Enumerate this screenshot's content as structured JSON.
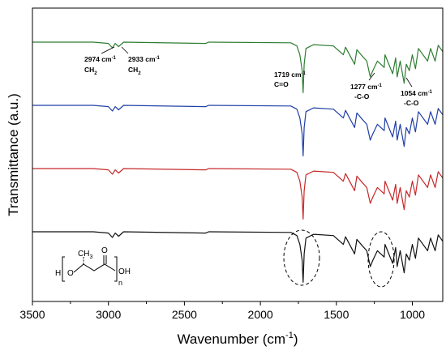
{
  "chart_data": {
    "type": "line",
    "title": "",
    "xlabel": "Wavenumber (cm",
    "xlabel_sup": "-1",
    "xlabel_suffix": ")",
    "ylabel": "Transmittance (a.u.)",
    "xlim": [
      3500,
      800
    ],
    "x_ticks": [
      "3500",
      "3000",
      "2500",
      "2000",
      "1500",
      "1000"
    ],
    "x_tick_values": [
      3500,
      3000,
      2500,
      2000,
      1500,
      1000
    ],
    "grid": false,
    "legend": "none",
    "series": [
      {
        "color": "#2e7d32",
        "baseline": 1.0,
        "points": [
          [
            3500,
            0
          ],
          [
            3100,
            0
          ],
          [
            3000,
            -0.02
          ],
          [
            2974,
            -0.09
          ],
          [
            2955,
            -0.02
          ],
          [
            2933,
            -0.07
          ],
          [
            2900,
            0
          ],
          [
            2360,
            -0.02
          ],
          [
            2340,
            0
          ],
          [
            1800,
            -0.01
          ],
          [
            1760,
            -0.06
          ],
          [
            1740,
            -0.2
          ],
          [
            1725,
            -0.45
          ],
          [
            1719,
            -0.8
          ],
          [
            1712,
            -0.35
          ],
          [
            1700,
            -0.1
          ],
          [
            1650,
            -0.04
          ],
          [
            1520,
            -0.06
          ],
          [
            1454,
            -0.2
          ],
          [
            1440,
            -0.08
          ],
          [
            1380,
            -0.35
          ],
          [
            1365,
            -0.12
          ],
          [
            1330,
            -0.22
          ],
          [
            1300,
            -0.3
          ],
          [
            1277,
            -0.55
          ],
          [
            1260,
            -0.45
          ],
          [
            1230,
            -0.3
          ],
          [
            1185,
            -0.4
          ],
          [
            1180,
            -0.2
          ],
          [
            1130,
            -0.5
          ],
          [
            1110,
            -0.25
          ],
          [
            1100,
            -0.55
          ],
          [
            1080,
            -0.3
          ],
          [
            1054,
            -0.65
          ],
          [
            1040,
            -0.35
          ],
          [
            1020,
            -0.45
          ],
          [
            1000,
            -0.2
          ],
          [
            980,
            -0.42
          ],
          [
            960,
            -0.1
          ],
          [
            900,
            -0.3
          ],
          [
            880,
            -0.1
          ],
          [
            850,
            -0.3
          ],
          [
            830,
            -0.05
          ],
          [
            800,
            -0.15
          ]
        ]
      },
      {
        "color": "#1f3fa6",
        "baseline": 0.0,
        "points": [
          [
            3500,
            0
          ],
          [
            3100,
            0
          ],
          [
            3000,
            -0.02
          ],
          [
            2974,
            -0.09
          ],
          [
            2955,
            -0.02
          ],
          [
            2933,
            -0.07
          ],
          [
            2900,
            0
          ],
          [
            2360,
            -0.02
          ],
          [
            2340,
            0
          ],
          [
            1800,
            -0.01
          ],
          [
            1760,
            -0.06
          ],
          [
            1740,
            -0.2
          ],
          [
            1725,
            -0.45
          ],
          [
            1719,
            -0.8
          ],
          [
            1712,
            -0.35
          ],
          [
            1700,
            -0.1
          ],
          [
            1650,
            -0.04
          ],
          [
            1520,
            -0.06
          ],
          [
            1454,
            -0.2
          ],
          [
            1440,
            -0.08
          ],
          [
            1380,
            -0.35
          ],
          [
            1365,
            -0.12
          ],
          [
            1330,
            -0.22
          ],
          [
            1300,
            -0.3
          ],
          [
            1277,
            -0.55
          ],
          [
            1260,
            -0.45
          ],
          [
            1230,
            -0.3
          ],
          [
            1185,
            -0.4
          ],
          [
            1180,
            -0.2
          ],
          [
            1130,
            -0.5
          ],
          [
            1110,
            -0.25
          ],
          [
            1100,
            -0.55
          ],
          [
            1080,
            -0.3
          ],
          [
            1054,
            -0.65
          ],
          [
            1040,
            -0.35
          ],
          [
            1020,
            -0.45
          ],
          [
            1000,
            -0.2
          ],
          [
            980,
            -0.42
          ],
          [
            960,
            -0.1
          ],
          [
            900,
            -0.3
          ],
          [
            880,
            -0.1
          ],
          [
            850,
            -0.3
          ],
          [
            830,
            -0.05
          ],
          [
            800,
            -0.15
          ]
        ]
      },
      {
        "color": "#c62828",
        "baseline": -1.0,
        "points": [
          [
            3500,
            0
          ],
          [
            3100,
            0
          ],
          [
            3000,
            -0.02
          ],
          [
            2974,
            -0.09
          ],
          [
            2955,
            -0.02
          ],
          [
            2933,
            -0.07
          ],
          [
            2900,
            0
          ],
          [
            2360,
            -0.02
          ],
          [
            2340,
            0
          ],
          [
            1800,
            -0.01
          ],
          [
            1760,
            -0.06
          ],
          [
            1740,
            -0.2
          ],
          [
            1725,
            -0.45
          ],
          [
            1719,
            -0.8
          ],
          [
            1712,
            -0.35
          ],
          [
            1700,
            -0.1
          ],
          [
            1650,
            -0.04
          ],
          [
            1520,
            -0.06
          ],
          [
            1454,
            -0.2
          ],
          [
            1440,
            -0.08
          ],
          [
            1380,
            -0.35
          ],
          [
            1365,
            -0.12
          ],
          [
            1330,
            -0.22
          ],
          [
            1300,
            -0.3
          ],
          [
            1277,
            -0.55
          ],
          [
            1260,
            -0.45
          ],
          [
            1230,
            -0.3
          ],
          [
            1185,
            -0.4
          ],
          [
            1180,
            -0.2
          ],
          [
            1130,
            -0.5
          ],
          [
            1110,
            -0.25
          ],
          [
            1100,
            -0.55
          ],
          [
            1080,
            -0.3
          ],
          [
            1054,
            -0.65
          ],
          [
            1040,
            -0.35
          ],
          [
            1020,
            -0.45
          ],
          [
            1000,
            -0.2
          ],
          [
            980,
            -0.42
          ],
          [
            960,
            -0.1
          ],
          [
            900,
            -0.3
          ],
          [
            880,
            -0.1
          ],
          [
            850,
            -0.3
          ],
          [
            830,
            -0.05
          ],
          [
            800,
            -0.15
          ]
        ]
      },
      {
        "color": "#111111",
        "baseline": -2.0,
        "points": [
          [
            3500,
            0
          ],
          [
            3100,
            0
          ],
          [
            3000,
            -0.02
          ],
          [
            2974,
            -0.09
          ],
          [
            2955,
            -0.02
          ],
          [
            2933,
            -0.07
          ],
          [
            2900,
            0
          ],
          [
            2360,
            -0.02
          ],
          [
            2340,
            0
          ],
          [
            1800,
            -0.01
          ],
          [
            1760,
            -0.06
          ],
          [
            1740,
            -0.2
          ],
          [
            1725,
            -0.45
          ],
          [
            1719,
            -0.8
          ],
          [
            1712,
            -0.35
          ],
          [
            1700,
            -0.1
          ],
          [
            1650,
            -0.04
          ],
          [
            1520,
            -0.06
          ],
          [
            1454,
            -0.2
          ],
          [
            1440,
            -0.08
          ],
          [
            1380,
            -0.35
          ],
          [
            1365,
            -0.12
          ],
          [
            1330,
            -0.22
          ],
          [
            1300,
            -0.3
          ],
          [
            1277,
            -0.55
          ],
          [
            1260,
            -0.45
          ],
          [
            1230,
            -0.3
          ],
          [
            1185,
            -0.4
          ],
          [
            1180,
            -0.2
          ],
          [
            1130,
            -0.5
          ],
          [
            1110,
            -0.25
          ],
          [
            1100,
            -0.55
          ],
          [
            1080,
            -0.3
          ],
          [
            1054,
            -0.65
          ],
          [
            1040,
            -0.35
          ],
          [
            1020,
            -0.45
          ],
          [
            1000,
            -0.2
          ],
          [
            980,
            -0.42
          ],
          [
            960,
            -0.1
          ],
          [
            900,
            -0.3
          ],
          [
            880,
            -0.1
          ],
          [
            850,
            -0.3
          ],
          [
            830,
            -0.05
          ],
          [
            800,
            -0.15
          ]
        ]
      }
    ],
    "annotations": [
      {
        "value": "2974 cm",
        "sup": "-1",
        "group": "CH",
        "sub": "2"
      },
      {
        "value": "2933 cm",
        "sup": "-1",
        "group": "CH",
        "sub": "2"
      },
      {
        "value": "1719 cm",
        "sup": "-1",
        "group": "C=O",
        "sub": ""
      },
      {
        "value": "1277 cm",
        "sup": "-1",
        "group": "-C-O",
        "sub": ""
      },
      {
        "value": "1054 cm",
        "sup": "-1",
        "group": "-C-O",
        "sub": ""
      }
    ],
    "structure": {
      "h": "H",
      "o": "O",
      "ch3": "CH",
      "ch3_sub": "3",
      "carbonyl_o": "O",
      "n": "n",
      "oh": "OH"
    }
  }
}
